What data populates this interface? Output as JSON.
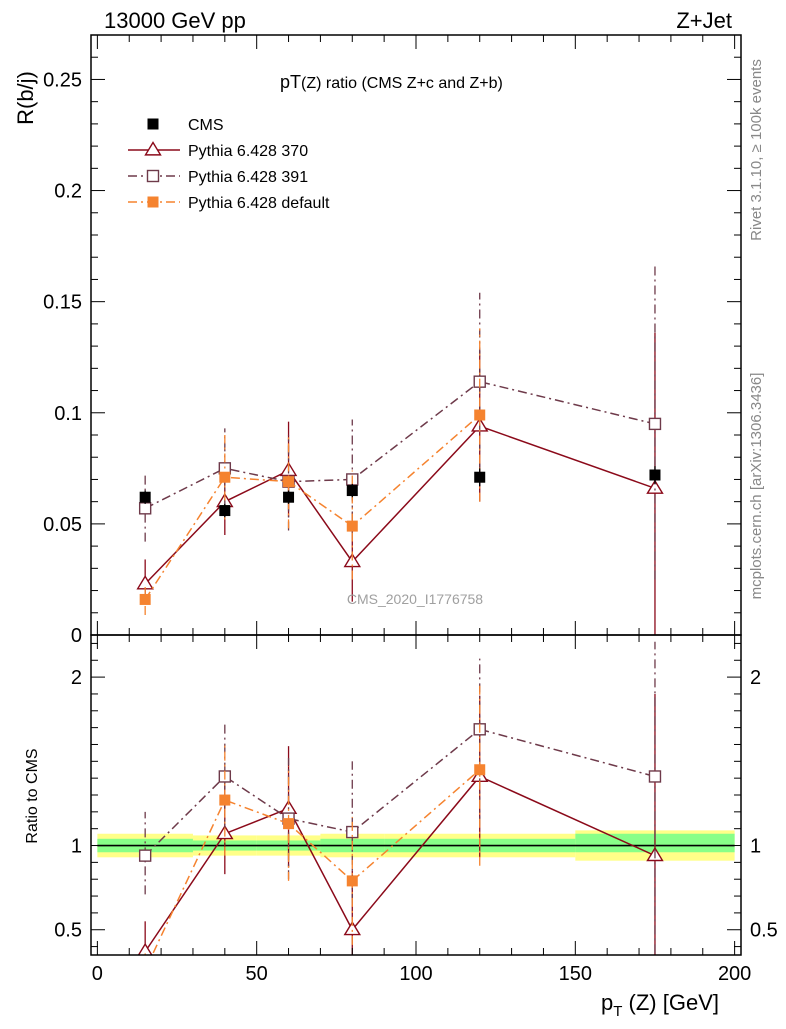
{
  "header": {
    "left": "13000 GeV pp",
    "right": "Z+Jet"
  },
  "side_text": {
    "rivet": "Rivet 3.1.10, ≥ 100k events",
    "mcplots": "mcplots.cern.ch [arXiv:1306.3436]"
  },
  "watermark": "CMS_2020_I1776758",
  "chart_data": [
    {
      "type": "scatter",
      "title_main": "pT",
      "title_sub": "(Z)",
      "title_rest": " ratio (CMS  Z+c and Z+b)",
      "ylabel": "R(b/j)",
      "xlim": [
        -2,
        202
      ],
      "ylim": [
        0,
        0.27
      ],
      "x_ticks": [
        0,
        50,
        100,
        150,
        200
      ],
      "y_ticks": [
        0,
        0.05,
        0.1,
        0.15,
        0.2,
        0.25
      ],
      "y_tick_labels": [
        "0",
        "0.05",
        "0.1",
        "0.15",
        "0.2",
        "0.25"
      ],
      "legend_position": "top-left",
      "series": [
        {
          "name": "CMS",
          "color": "#000000",
          "marker": "filled-square",
          "line": "none",
          "x": [
            15,
            40,
            60,
            80,
            120,
            175
          ],
          "y": [
            0.062,
            0.056,
            0.062,
            0.065,
            0.071,
            0.072
          ],
          "err_lo": [
            0.003,
            0.003,
            0.003,
            0.003,
            0.004,
            0.004
          ],
          "err_hi": [
            0.003,
            0.003,
            0.003,
            0.003,
            0.004,
            0.004
          ]
        },
        {
          "name": "Pythia 6.428 370",
          "color": "#8b0a1a",
          "marker": "open-triangle",
          "line": "solid",
          "x": [
            15,
            40,
            60,
            80,
            120,
            175
          ],
          "y": [
            0.023,
            0.06,
            0.074,
            0.033,
            0.094,
            0.066
          ],
          "err_lo": [
            0.009,
            0.015,
            0.021,
            0.018,
            0.034,
            0.066
          ],
          "err_hi": [
            0.011,
            0.017,
            0.022,
            0.022,
            0.034,
            0.07
          ]
        },
        {
          "name": "Pythia 6.428 391",
          "color": "#6e3a4a",
          "marker": "open-square",
          "line": "dashdot",
          "x": [
            15,
            40,
            60,
            80,
            120,
            175
          ],
          "y": [
            0.057,
            0.075,
            0.069,
            0.07,
            0.114,
            0.095
          ],
          "err_lo": [
            0.015,
            0.018,
            0.022,
            0.027,
            0.04,
            0.07
          ],
          "err_hi": [
            0.016,
            0.018,
            0.021,
            0.027,
            0.04,
            0.071
          ]
        },
        {
          "name": "Pythia 6.428 default",
          "color": "#f5832f",
          "marker": "filled-square",
          "line": "dashdot",
          "x": [
            15,
            40,
            60,
            80,
            120,
            175
          ],
          "y": [
            0.016,
            0.071,
            0.069,
            0.049,
            0.099,
            null
          ],
          "err_lo": [
            0.007,
            0.019,
            0.021,
            0.024,
            0.039,
            null
          ],
          "err_hi": [
            0.007,
            0.019,
            0.021,
            0.025,
            0.039,
            null
          ]
        }
      ]
    },
    {
      "type": "scatter",
      "ylabel": "Ratio to CMS",
      "xlabel_main": "p",
      "xlabel_sub": "T",
      "xlabel_rest": " (Z) [GeV]",
      "xlim": [
        -2,
        202
      ],
      "ylim": [
        0.35,
        2.25
      ],
      "x_ticks": [
        0,
        50,
        100,
        150,
        200
      ],
      "x_tick_labels": [
        "0",
        "50",
        "100",
        "150",
        "200"
      ],
      "y_ticks": [
        0.5,
        1,
        2
      ],
      "y_tick_labels": [
        "0.5",
        "1",
        "2"
      ],
      "reference_line": 1,
      "bands": [
        {
          "x0": 0,
          "x1": 30,
          "inner": [
            0.96,
            1.04
          ],
          "outer": [
            0.93,
            1.07
          ]
        },
        {
          "x0": 30,
          "x1": 50,
          "inner": [
            0.97,
            1.03
          ],
          "outer": [
            0.94,
            1.06
          ]
        },
        {
          "x0": 50,
          "x1": 70,
          "inner": [
            0.97,
            1.03
          ],
          "outer": [
            0.94,
            1.06
          ]
        },
        {
          "x0": 70,
          "x1": 90,
          "inner": [
            0.96,
            1.04
          ],
          "outer": [
            0.93,
            1.07
          ]
        },
        {
          "x0": 90,
          "x1": 150,
          "inner": [
            0.96,
            1.04
          ],
          "outer": [
            0.93,
            1.07
          ]
        },
        {
          "x0": 150,
          "x1": 200,
          "inner": [
            0.96,
            1.07
          ],
          "outer": [
            0.91,
            1.09
          ]
        }
      ],
      "band_colors": {
        "inner": "#88ff88",
        "outer": "#ffff88"
      },
      "series": [
        {
          "name": "Pythia 6.428 370",
          "color": "#8b0a1a",
          "marker": "open-triangle",
          "line": "solid",
          "x": [
            15,
            40,
            60,
            80,
            120,
            175
          ],
          "y": [
            0.37,
            1.07,
            1.22,
            0.5,
            1.41,
            0.94
          ],
          "err_lo": [
            0.15,
            0.24,
            0.35,
            0.28,
            0.48,
            0.9
          ],
          "err_hi": [
            0.18,
            0.3,
            0.37,
            0.35,
            0.48,
            0.96
          ]
        },
        {
          "name": "Pythia 6.428 391",
          "color": "#6e3a4a",
          "marker": "open-square",
          "line": "dashdot",
          "x": [
            15,
            40,
            60,
            80,
            120,
            175
          ],
          "y": [
            0.94,
            1.41,
            1.16,
            1.08,
            1.69,
            1.41
          ],
          "err_lo": [
            0.23,
            0.31,
            0.36,
            0.42,
            0.57,
            1.05
          ],
          "err_hi": [
            0.26,
            0.32,
            0.36,
            0.42,
            0.42,
            0.8
          ]
        },
        {
          "name": "Pythia 6.428 default",
          "color": "#f5832f",
          "marker": "filled-square",
          "line": "dashdot",
          "x": [
            15,
            40,
            60,
            80,
            120,
            175
          ],
          "y": [
            0.26,
            1.27,
            1.13,
            0.79,
            1.45,
            null
          ],
          "err_lo": [
            0.1,
            0.33,
            0.34,
            0.38,
            0.57,
            null
          ],
          "err_hi": [
            0.1,
            0.33,
            0.34,
            0.38,
            0.52,
            null
          ]
        }
      ]
    }
  ]
}
